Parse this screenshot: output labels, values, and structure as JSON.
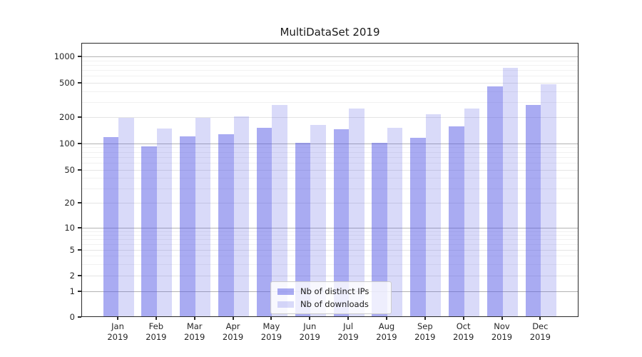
{
  "title": "MultiDataSet 2019",
  "legend": {
    "items": [
      {
        "label": "Nb of distinct IPs"
      },
      {
        "label": "Nb of downloads"
      }
    ]
  },
  "colors": {
    "bar_distinct_ips": "rgba(83,87,229,0.50)",
    "bar_downloads": "rgba(83,87,229,0.22)",
    "axis": "#2a2a2a",
    "grid_major": "#b3b3b3"
  },
  "chart_data": {
    "type": "bar",
    "title": "MultiDataSet 2019",
    "categories": [
      "Jan 2019",
      "Feb 2019",
      "Mar 2019",
      "Apr 2019",
      "May 2019",
      "Jun 2019",
      "Jul 2019",
      "Aug 2019",
      "Sep 2019",
      "Oct 2019",
      "Nov 2019",
      "Dec 2019"
    ],
    "series": [
      {
        "name": "Nb of distinct IPs",
        "values": [
          115,
          90,
          118,
          124,
          148,
          100,
          142,
          100,
          113,
          154,
          448,
          272
        ]
      },
      {
        "name": "Nb of downloads",
        "values": [
          192,
          146,
          192,
          200,
          272,
          158,
          246,
          148,
          212,
          246,
          730,
          478
        ]
      }
    ],
    "yscale": "symlog",
    "y_ticks": [
      0,
      1,
      2,
      5,
      10,
      20,
      50,
      100,
      200,
      500,
      1000
    ],
    "ylim": [
      0,
      1400
    ],
    "xlabel": "",
    "ylabel": "",
    "grid": true,
    "legend_position": "lower center"
  }
}
